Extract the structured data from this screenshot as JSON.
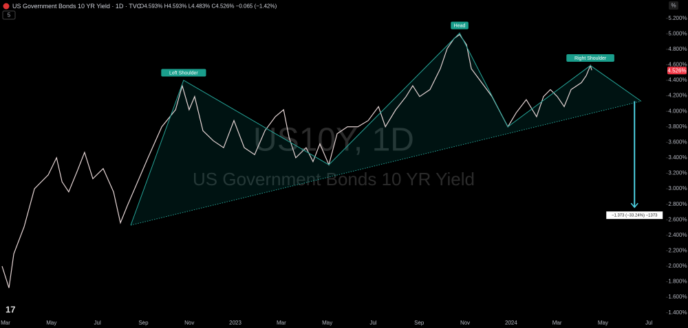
{
  "header": {
    "title": "US Government Bonds 10 YR Yield · 1D · TVC",
    "ohlc": "O4.593% H4.593% L4.483% C4.526% −0.065 (−1.42%)",
    "interval": "5",
    "scale_mode": "%"
  },
  "watermark": {
    "symbol": "US10Y, 1D",
    "name": "US Government Bonds 10 YR Yield"
  },
  "chart_data": {
    "type": "line",
    "series": [
      {
        "name": "US10Y",
        "color": "#e6d6d6",
        "x": [
          -0.15,
          0.15,
          0.36,
          0.81,
          1.26,
          1.86,
          2.22,
          2.46,
          2.75,
          3.11,
          3.44,
          3.8,
          4.25,
          4.7,
          5.0,
          5.3,
          5.75,
          6.2,
          6.8,
          7.4,
          7.69,
          7.99,
          8.23,
          8.59,
          9.04,
          9.49,
          9.94,
          10.39,
          10.84,
          11.29,
          11.74,
          12.1,
          12.34,
          12.63,
          13.08,
          13.38,
          13.68,
          14.07,
          14.43,
          14.88,
          15.33,
          15.78,
          16.23,
          16.53,
          16.98,
          17.43,
          17.72,
          18.02,
          18.47,
          18.92,
          19.22,
          19.52,
          19.76,
          20.06,
          20.27,
          20.72,
          21.17,
          21.47,
          21.86,
          22.22,
          22.66,
          23.11,
          23.41,
          23.71,
          24.01,
          24.31,
          24.61,
          25.06,
          25.27,
          25.45,
          25.51
        ],
        "values": [
          2.0,
          1.72,
          2.16,
          2.51,
          3.0,
          3.18,
          3.4,
          3.09,
          2.96,
          3.22,
          3.47,
          3.13,
          3.26,
          2.96,
          2.56,
          2.78,
          3.09,
          3.4,
          3.8,
          4.02,
          4.33,
          4.02,
          4.19,
          3.75,
          3.62,
          3.53,
          3.88,
          3.53,
          3.44,
          3.75,
          3.93,
          4.02,
          3.66,
          3.4,
          3.53,
          3.35,
          3.58,
          3.31,
          3.71,
          3.8,
          3.8,
          3.88,
          4.06,
          3.8,
          4.02,
          4.19,
          4.33,
          4.19,
          4.28,
          4.55,
          4.81,
          4.94,
          4.99,
          4.86,
          4.55,
          4.37,
          4.19,
          4.02,
          3.8,
          3.98,
          4.15,
          3.93,
          4.19,
          4.28,
          4.19,
          4.06,
          4.28,
          4.37,
          4.46,
          4.59,
          4.53
        ]
      }
    ],
    "last_price": {
      "value": 4.526,
      "label": "4.526%"
    },
    "pattern": {
      "x": [
        5.45,
        7.75,
        14.07,
        19.76,
        21.86,
        25.45,
        27.66
      ],
      "values": [
        2.53,
        4.4,
        3.31,
        5.01,
        3.8,
        4.59,
        4.13
      ]
    },
    "pattern_labels": [
      "Left Shoulder",
      "Head",
      "Right Shoulder"
    ],
    "neckline": {
      "x": [
        5.45,
        27.66
      ],
      "values": [
        2.53,
        4.13
      ]
    },
    "target": {
      "x": [
        27.37,
        27.37
      ],
      "values": [
        4.13,
        2.76
      ],
      "label": "−1.373 (−33.24%) −1373"
    },
    "xlim": [
      -0.24,
      28.74
    ],
    "ylim": [
      1.3,
      5.33
    ],
    "xticks": [
      {
        "value": 0,
        "label": "Mar"
      },
      {
        "value": 2,
        "label": "May"
      },
      {
        "value": 4,
        "label": "Jul"
      },
      {
        "value": 6,
        "label": "Sep"
      },
      {
        "value": 8,
        "label": "Nov"
      },
      {
        "value": 10,
        "label": "2023"
      },
      {
        "value": 12,
        "label": "Mar"
      },
      {
        "value": 14,
        "label": "May"
      },
      {
        "value": 16,
        "label": "Jul"
      },
      {
        "value": 18,
        "label": "Sep"
      },
      {
        "value": 20,
        "label": "Nov"
      },
      {
        "value": 22,
        "label": "2024"
      },
      {
        "value": 24,
        "label": "Mar"
      },
      {
        "value": 26,
        "label": "May"
      },
      {
        "value": 28,
        "label": "Jul"
      }
    ],
    "yticks": [
      {
        "value": 1.4,
        "label": "1.400%"
      },
      {
        "value": 1.6,
        "label": "1.600%"
      },
      {
        "value": 1.8,
        "label": "1.800%"
      },
      {
        "value": 2.0,
        "label": "2.000%"
      },
      {
        "value": 2.2,
        "label": "2.200%"
      },
      {
        "value": 2.4,
        "label": "2.400%"
      },
      {
        "value": 2.6,
        "label": "2.600%"
      },
      {
        "value": 2.8,
        "label": "2.800%"
      },
      {
        "value": 3.0,
        "label": "3.000%"
      },
      {
        "value": 3.2,
        "label": "3.200%"
      },
      {
        "value": 3.4,
        "label": "3.400%"
      },
      {
        "value": 3.6,
        "label": "3.600%"
      },
      {
        "value": 3.8,
        "label": "3.800%"
      },
      {
        "value": 4.0,
        "label": "4.000%"
      },
      {
        "value": 4.2,
        "label": "4.200%"
      },
      {
        "value": 4.4,
        "label": "4.400%"
      },
      {
        "value": 4.6,
        "label": "4.600%"
      },
      {
        "value": 4.8,
        "label": "4.800%"
      },
      {
        "value": 5.0,
        "label": "5.000%"
      },
      {
        "value": 5.2,
        "label": "5.200%"
      }
    ]
  }
}
